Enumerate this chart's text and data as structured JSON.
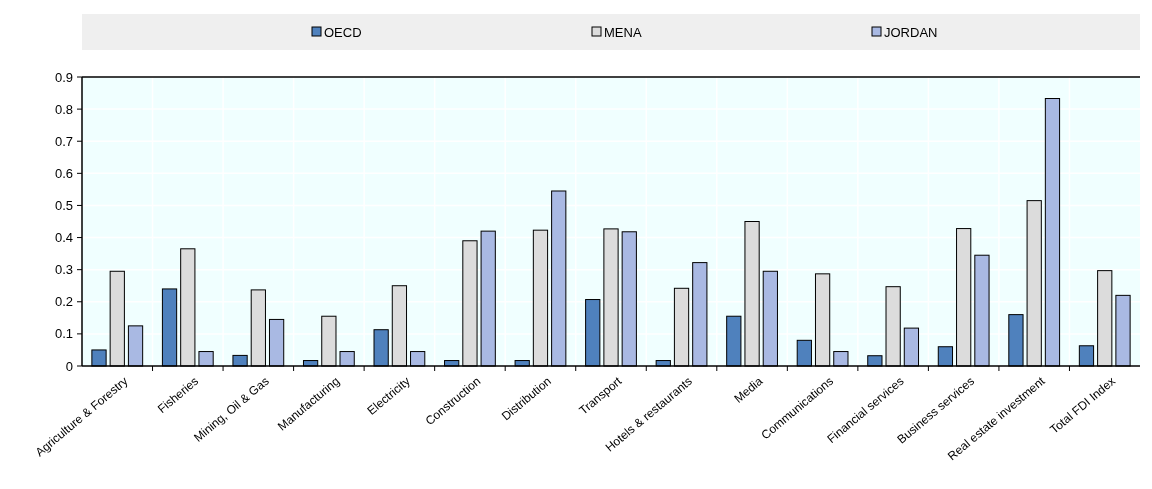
{
  "chart_data": {
    "type": "bar",
    "categories": [
      "Agriculture & Forestry",
      "Fisheries",
      "Mining, Oil & Gas",
      "Manufacturing",
      "Electricity",
      "Construction",
      "Distribution",
      "Transport",
      "Hotels & restaurants",
      "Media",
      "Communications",
      "Financial services",
      "Business services",
      "Real estate investment",
      "Total FDI Index"
    ],
    "series": [
      {
        "name": "OECD",
        "color": "#4f81bd",
        "values": [
          0.05,
          0.24,
          0.033,
          0.017,
          0.113,
          0.017,
          0.017,
          0.207,
          0.017,
          0.155,
          0.08,
          0.032,
          0.06,
          0.16,
          0.063
        ]
      },
      {
        "name": "MENA",
        "color": "#dcdcdc",
        "values": [
          0.295,
          0.365,
          0.237,
          0.155,
          0.25,
          0.39,
          0.423,
          0.427,
          0.242,
          0.45,
          0.287,
          0.247,
          0.428,
          0.515,
          0.297
        ]
      },
      {
        "name": "JORDAN",
        "color": "#a9b9e3",
        "values": [
          0.125,
          0.045,
          0.145,
          0.045,
          0.045,
          0.42,
          0.545,
          0.418,
          0.322,
          0.295,
          0.045,
          0.118,
          0.345,
          0.833,
          0.22
        ]
      }
    ],
    "ylim": [
      0,
      0.9
    ],
    "yticks": [
      {
        "value": 0,
        "label": "0"
      },
      0.1,
      0.2,
      0.3,
      0.4,
      0.5,
      0.6,
      0.7,
      0.8,
      0.9
    ],
    "grid": true,
    "legend": "top"
  }
}
